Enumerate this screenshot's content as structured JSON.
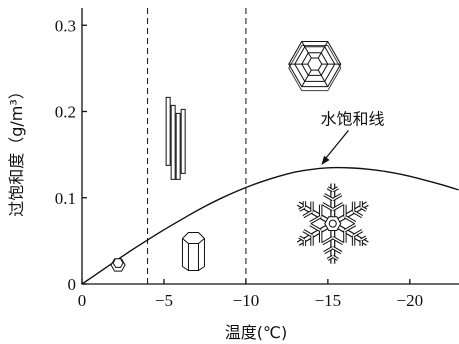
{
  "chart_data": {
    "type": "line",
    "xlabel": "温度(℃)",
    "ylabel": "过饱和度（g/m³）",
    "xlim": [
      0,
      -23
    ],
    "ylim": [
      0,
      0.32
    ],
    "x_ticks": [
      0,
      -5,
      -10,
      -15,
      -20
    ],
    "x_tick_labels": [
      "0",
      "−5",
      "−10",
      "−15",
      "−20"
    ],
    "y_ticks": [
      0,
      0.1,
      0.2,
      0.3
    ],
    "y_tick_labels": [
      "0",
      "0.1",
      "0.2",
      "0.3"
    ],
    "grid": false,
    "reference_lines_x": [
      -4,
      -10
    ],
    "series": [
      {
        "name": "水饱和线",
        "x": [
          0,
          -1,
          -2,
          -3,
          -4,
          -5,
          -6,
          -7,
          -8,
          -9,
          -10,
          -11,
          -12,
          -13,
          -14,
          -15,
          -16,
          -17,
          -18,
          -19,
          -20,
          -21,
          -22,
          -23
        ],
        "y": [
          0,
          0.013,
          0.026,
          0.039,
          0.051,
          0.063,
          0.074,
          0.085,
          0.095,
          0.104,
          0.112,
          0.119,
          0.125,
          0.13,
          0.133,
          0.135,
          0.135,
          0.134,
          0.132,
          0.129,
          0.125,
          0.12,
          0.115,
          0.109
        ]
      }
    ],
    "annotations": [
      {
        "text": "水饱和线",
        "x": -16.5,
        "y": 0.185
      }
    ],
    "crystal_icons": [
      {
        "name": "small-hexagonal-plate-icon",
        "x": -2.2,
        "y": 0.022
      },
      {
        "name": "needle-crystals-icon",
        "x": -5.5,
        "y": 0.17
      },
      {
        "name": "hexagonal-column-icon",
        "x": -6.8,
        "y": 0.04
      },
      {
        "name": "sector-plate-icon",
        "x": -14.2,
        "y": 0.255
      },
      {
        "name": "dendrite-snowflake-icon",
        "x": -15.3,
        "y": 0.07
      }
    ]
  }
}
